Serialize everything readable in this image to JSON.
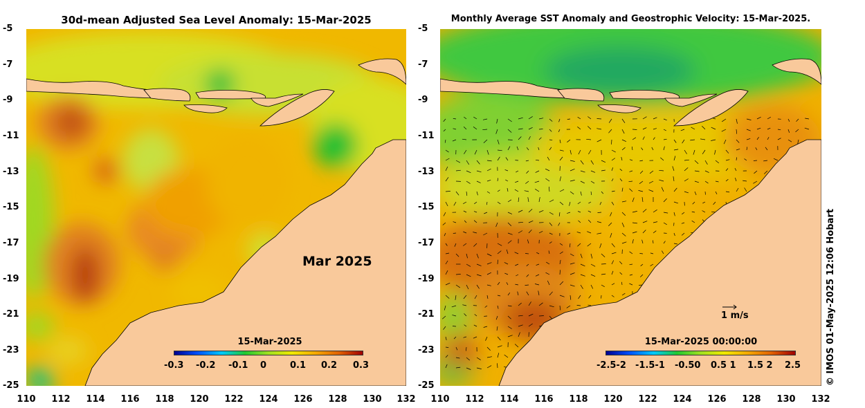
{
  "left_panel": {
    "title": "30d-mean Adjusted Sea Level Anomaly: 15-Mar-2025",
    "month_label": "Mar 2025",
    "colorbar_date": "15-Mar-2025",
    "colorbar_ticks": [
      "-0.3",
      "-0.2",
      "-0.1",
      "0",
      "0.1",
      "0.2",
      "0.3"
    ]
  },
  "right_panel": {
    "title": "Monthly Average SST Anomaly  and Geostrophic Velocity: 15-Mar-2025.",
    "colorbar_date": "15-Mar-2025 00:00:00",
    "colorbar_ticks": [
      "-2.5-2",
      "-1.5-1",
      "-0.50",
      "0.5 1",
      "1.5 2",
      "2.5"
    ],
    "velocity_scale_label": "1 m/s"
  },
  "axes": {
    "x_ticks": [
      "110",
      "112",
      "114",
      "116",
      "118",
      "120",
      "122",
      "124",
      "126",
      "128",
      "130",
      "132"
    ],
    "y_ticks": [
      "-5",
      "-7",
      "-9",
      "-11",
      "-13",
      "-15",
      "-17",
      "-19",
      "-21",
      "-23",
      "-25"
    ]
  },
  "copyright": "© IMOS 01-May-2025 12:06 Hobart",
  "colors": {
    "land": "#f9c99b",
    "colormap": [
      "#00008f",
      "#0050ff",
      "#00c8ff",
      "#20c830",
      "#a0e020",
      "#f0e800",
      "#f5a800",
      "#e06000",
      "#a00000"
    ]
  }
}
